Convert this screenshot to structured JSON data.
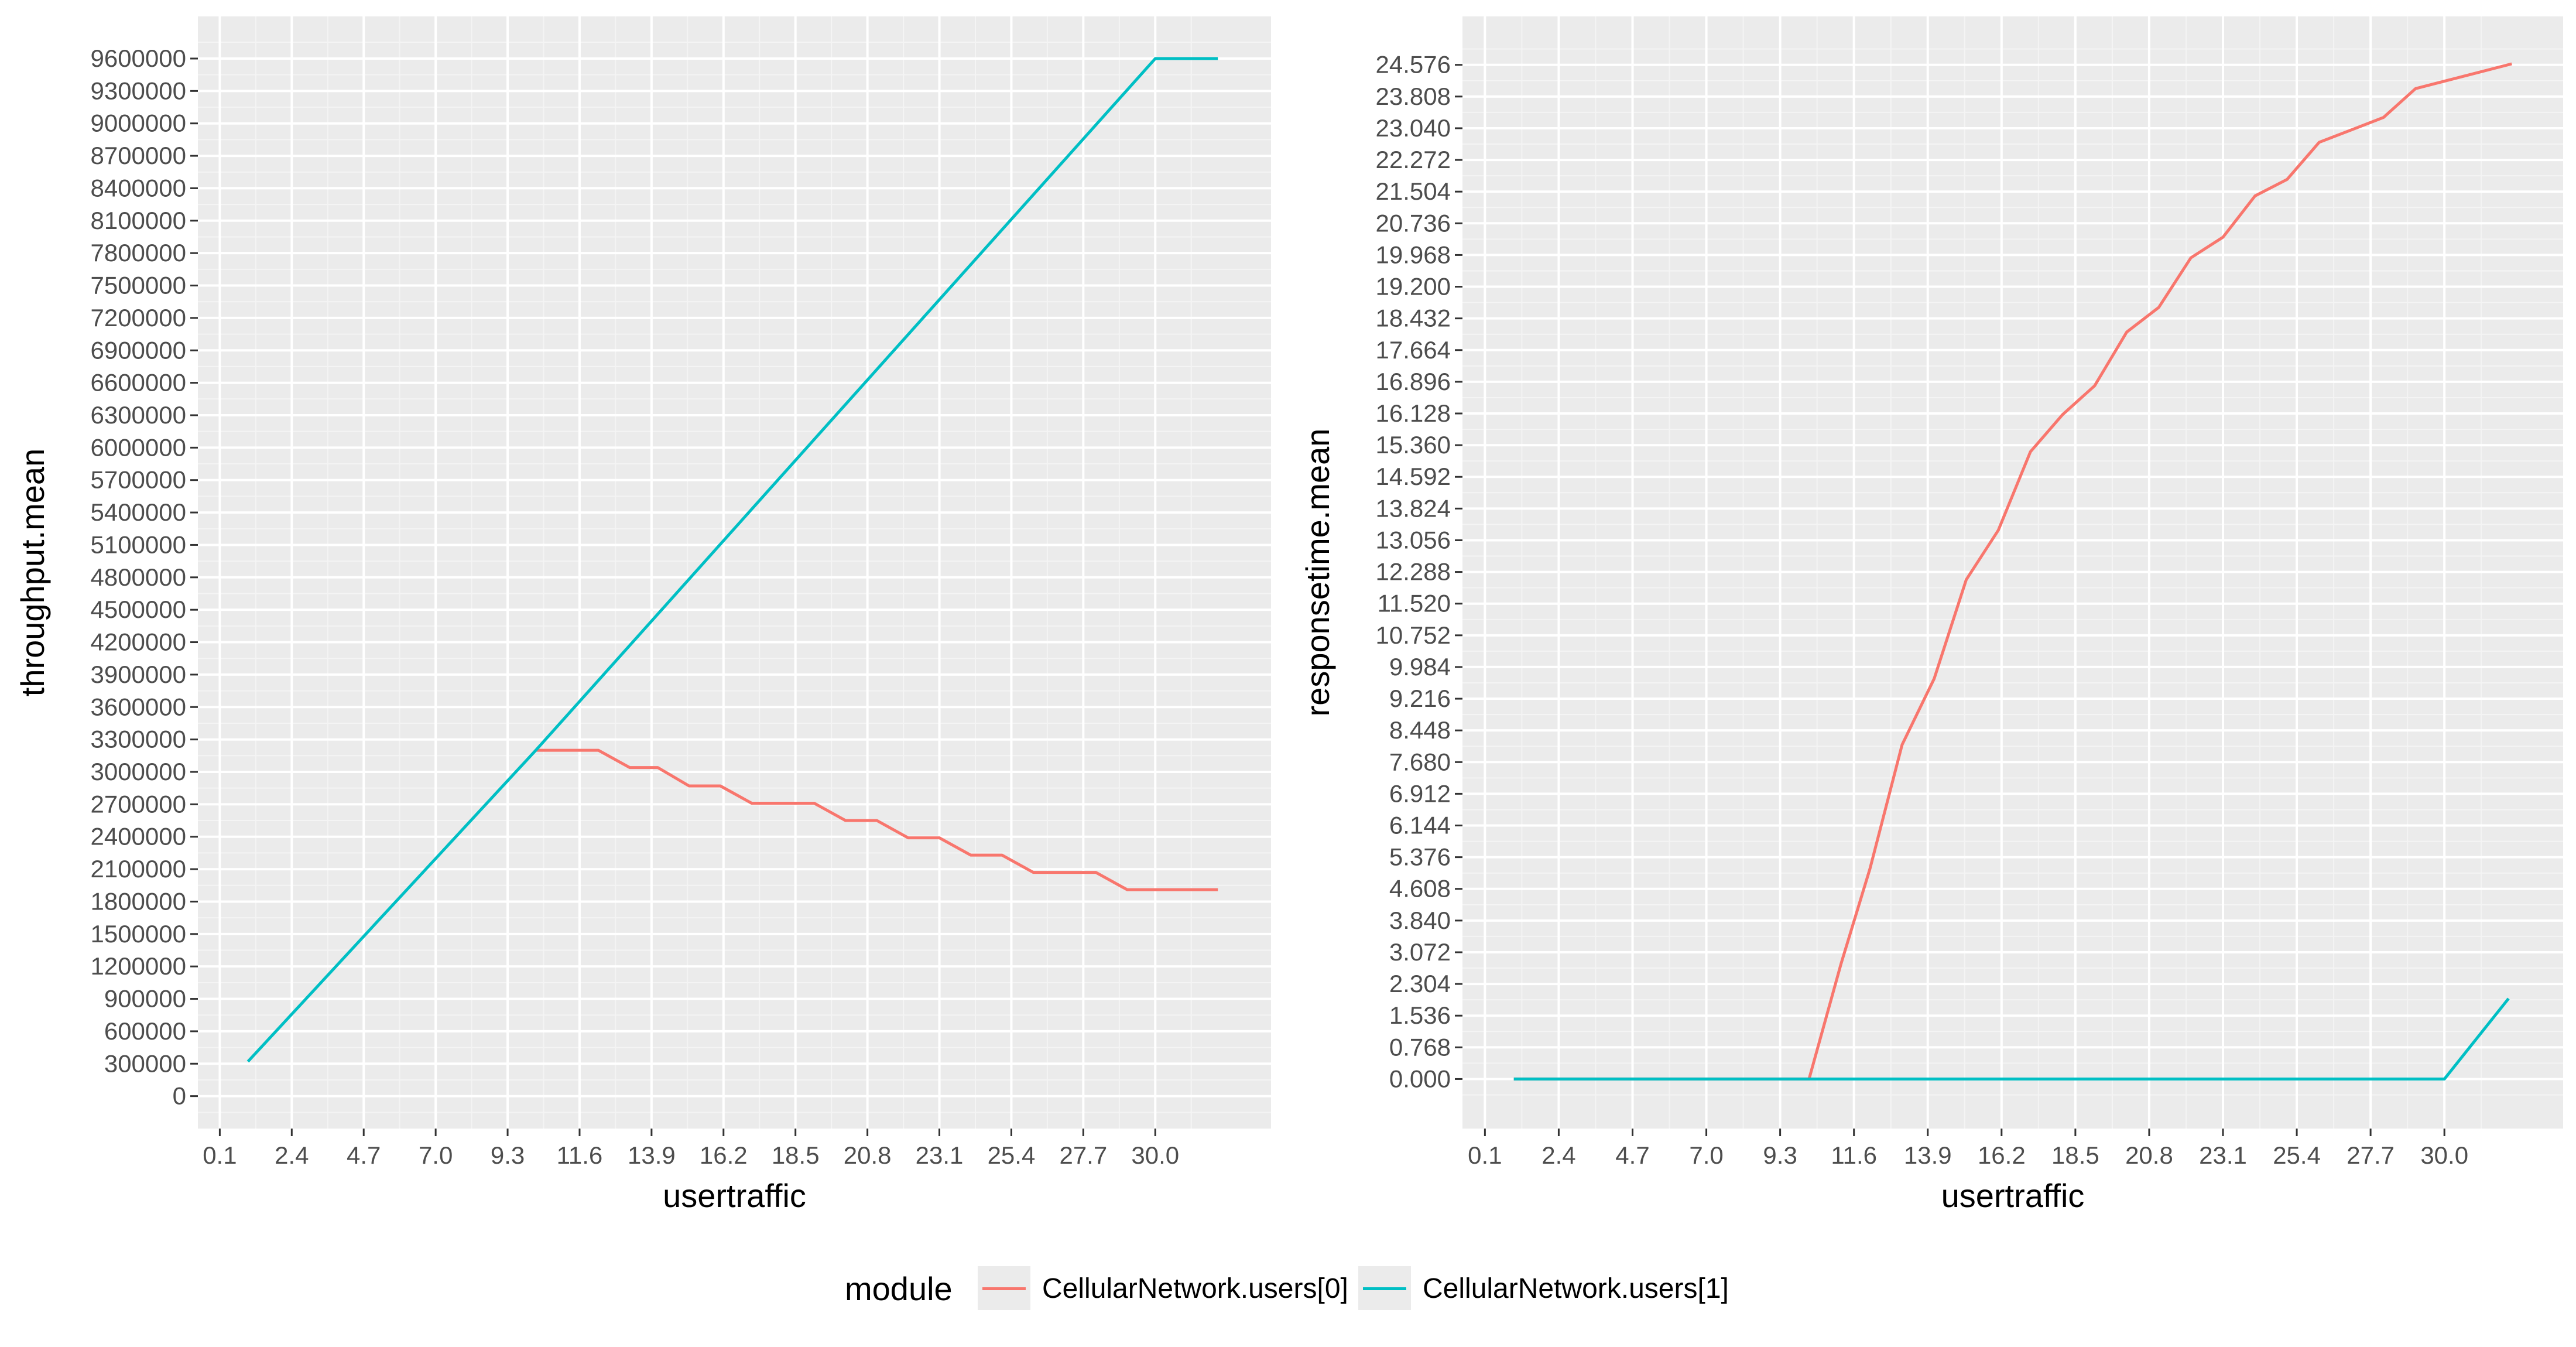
{
  "legend": {
    "title": "module",
    "entries": [
      {
        "label": "CellularNetwork.users[0]",
        "color": "#F8766D"
      },
      {
        "label": "CellularNetwork.users[1]",
        "color": "#00BFC4"
      }
    ]
  },
  "chart_data": [
    {
      "type": "line",
      "xlabel": "usertraffic",
      "ylabel": "throughput.mean",
      "x_ticks": [
        "0.1",
        "2.4",
        "4.7",
        "7.0",
        "9.3",
        "11.6",
        "13.9",
        "16.2",
        "18.5",
        "20.8",
        "23.1",
        "25.4",
        "27.7",
        "30.0"
      ],
      "y_ticks": [
        "0",
        "300000",
        "600000",
        "900000",
        "1200000",
        "1500000",
        "1800000",
        "2100000",
        "2400000",
        "2700000",
        "3000000",
        "3300000",
        "3600000",
        "3900000",
        "4200000",
        "4500000",
        "4800000",
        "5100000",
        "5400000",
        "5700000",
        "6000000",
        "6300000",
        "6600000",
        "6900000",
        "7200000",
        "7500000",
        "7800000",
        "8100000",
        "8400000",
        "8700000",
        "9000000",
        "9300000",
        "9600000"
      ],
      "xlim": [
        -0.6,
        33.7
      ],
      "ylim": [
        -300000,
        9990000
      ],
      "grid": true,
      "series": [
        {
          "name": "CellularNetwork.users[0]",
          "color": "#F8766D",
          "points": [
            [
              10.2,
              3200000
            ],
            [
              11.2,
              3200000
            ],
            [
              12.2,
              3200000
            ],
            [
              13.2,
              3040000
            ],
            [
              14.1,
              3040000
            ],
            [
              15.1,
              2870000
            ],
            [
              16.1,
              2870000
            ],
            [
              17.1,
              2710000
            ],
            [
              18.1,
              2710000
            ],
            [
              19.1,
              2710000
            ],
            [
              20.1,
              2550000
            ],
            [
              21.1,
              2550000
            ],
            [
              22.1,
              2390000
            ],
            [
              23.1,
              2390000
            ],
            [
              24.1,
              2230000
            ],
            [
              25.1,
              2230000
            ],
            [
              26.1,
              2070000
            ],
            [
              27.1,
              2070000
            ],
            [
              28.1,
              2070000
            ],
            [
              29.1,
              1910000
            ],
            [
              30.1,
              1910000
            ],
            [
              31.1,
              1910000
            ],
            [
              32.0,
              1910000
            ]
          ]
        },
        {
          "name": "CellularNetwork.users[1]",
          "color": "#00BFC4",
          "points": [
            [
              1.0,
              320000
            ],
            [
              10.2,
              3200000
            ],
            [
              30.0,
              9600000
            ],
            [
              32.0,
              9600000
            ]
          ]
        }
      ]
    },
    {
      "type": "line",
      "xlabel": "usertraffic",
      "ylabel": "responsetime.mean",
      "x_ticks": [
        "0.1",
        "2.4",
        "4.7",
        "7.0",
        "9.3",
        "11.6",
        "13.9",
        "16.2",
        "18.5",
        "20.8",
        "23.1",
        "25.4",
        "27.7",
        "30.0"
      ],
      "y_ticks": [
        "0.000",
        "0.768",
        "1.536",
        "2.304",
        "3.072",
        "3.840",
        "4.608",
        "5.376",
        "6.144",
        "6.912",
        "7.680",
        "8.448",
        "9.216",
        "9.984",
        "10.752",
        "11.520",
        "12.288",
        "13.056",
        "13.824",
        "14.592",
        "15.360",
        "16.128",
        "16.896",
        "17.664",
        "18.432",
        "19.200",
        "19.968",
        "20.736",
        "21.504",
        "22.272",
        "23.040",
        "23.808",
        "24.576"
      ],
      "xlim": [
        -0.6,
        33.7
      ],
      "ylim": [
        -1.2,
        25.75
      ],
      "grid": true,
      "series": [
        {
          "name": "CellularNetwork.users[0]",
          "color": "#F8766D",
          "points": [
            [
              1.0,
              0.0
            ],
            [
              10.2,
              0.0
            ],
            [
              11.2,
              2.8
            ],
            [
              12.1,
              5.1
            ],
            [
              13.1,
              8.1
            ],
            [
              14.1,
              9.7
            ],
            [
              15.1,
              12.1
            ],
            [
              16.1,
              13.3
            ],
            [
              17.1,
              15.2
            ],
            [
              18.1,
              16.1
            ],
            [
              19.1,
              16.8
            ],
            [
              20.1,
              18.1
            ],
            [
              21.1,
              18.7
            ],
            [
              22.1,
              19.9
            ],
            [
              23.1,
              20.4
            ],
            [
              24.1,
              21.4
            ],
            [
              25.1,
              21.8
            ],
            [
              26.1,
              22.7
            ],
            [
              27.1,
              23.0
            ],
            [
              28.1,
              23.3
            ],
            [
              29.1,
              24.0
            ],
            [
              30.1,
              24.2
            ],
            [
              32.1,
              24.6
            ]
          ]
        },
        {
          "name": "CellularNetwork.users[1]",
          "color": "#00BFC4",
          "points": [
            [
              1.0,
              0.0
            ],
            [
              30.0,
              0.0
            ],
            [
              32.0,
              1.95
            ]
          ]
        }
      ]
    }
  ]
}
